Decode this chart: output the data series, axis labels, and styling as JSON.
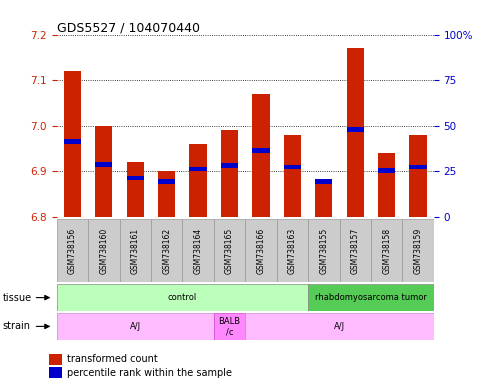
{
  "title": "GDS5527 / 104070440",
  "samples": [
    "GSM738156",
    "GSM738160",
    "GSM738161",
    "GSM738162",
    "GSM738164",
    "GSM738165",
    "GSM738166",
    "GSM738163",
    "GSM738155",
    "GSM738157",
    "GSM738158",
    "GSM738159"
  ],
  "red_values": [
    7.12,
    7.0,
    6.92,
    6.9,
    6.96,
    6.99,
    7.07,
    6.98,
    6.88,
    7.17,
    6.94,
    6.98
  ],
  "blue_values": [
    6.965,
    6.915,
    6.885,
    6.878,
    6.905,
    6.913,
    6.946,
    6.91,
    6.878,
    6.992,
    6.902,
    6.91
  ],
  "ylim_left": [
    6.8,
    7.2
  ],
  "ylim_right": [
    0,
    100
  ],
  "yticks_left": [
    6.8,
    6.9,
    7.0,
    7.1,
    7.2
  ],
  "yticks_right": [
    0,
    25,
    50,
    75,
    100
  ],
  "bar_bottom": 6.8,
  "red_color": "#cc2200",
  "blue_color": "#0000cc",
  "tissue_control_color": "#bbffbb",
  "tissue_tumor_color": "#55cc55",
  "strain_color": "#ffbbff",
  "strain_balb_color": "#ff88ff",
  "tissue_groups": [
    {
      "label": "control",
      "start": 0,
      "end": 8
    },
    {
      "label": "rhabdomyosarcoma tumor",
      "start": 8,
      "end": 12
    }
  ],
  "strain_groups": [
    {
      "label": "A/J",
      "start": 0,
      "end": 5
    },
    {
      "label": "BALB\n/c",
      "start": 5,
      "end": 6
    },
    {
      "label": "A/J",
      "start": 6,
      "end": 12
    }
  ],
  "legend_red": "transformed count",
  "legend_blue": "percentile rank within the sample",
  "bar_width": 0.55,
  "tick_label_color_left": "#cc2200",
  "tick_label_color_right": "#0000cc",
  "sample_box_color": "#cccccc",
  "sample_box_edge": "#999999"
}
